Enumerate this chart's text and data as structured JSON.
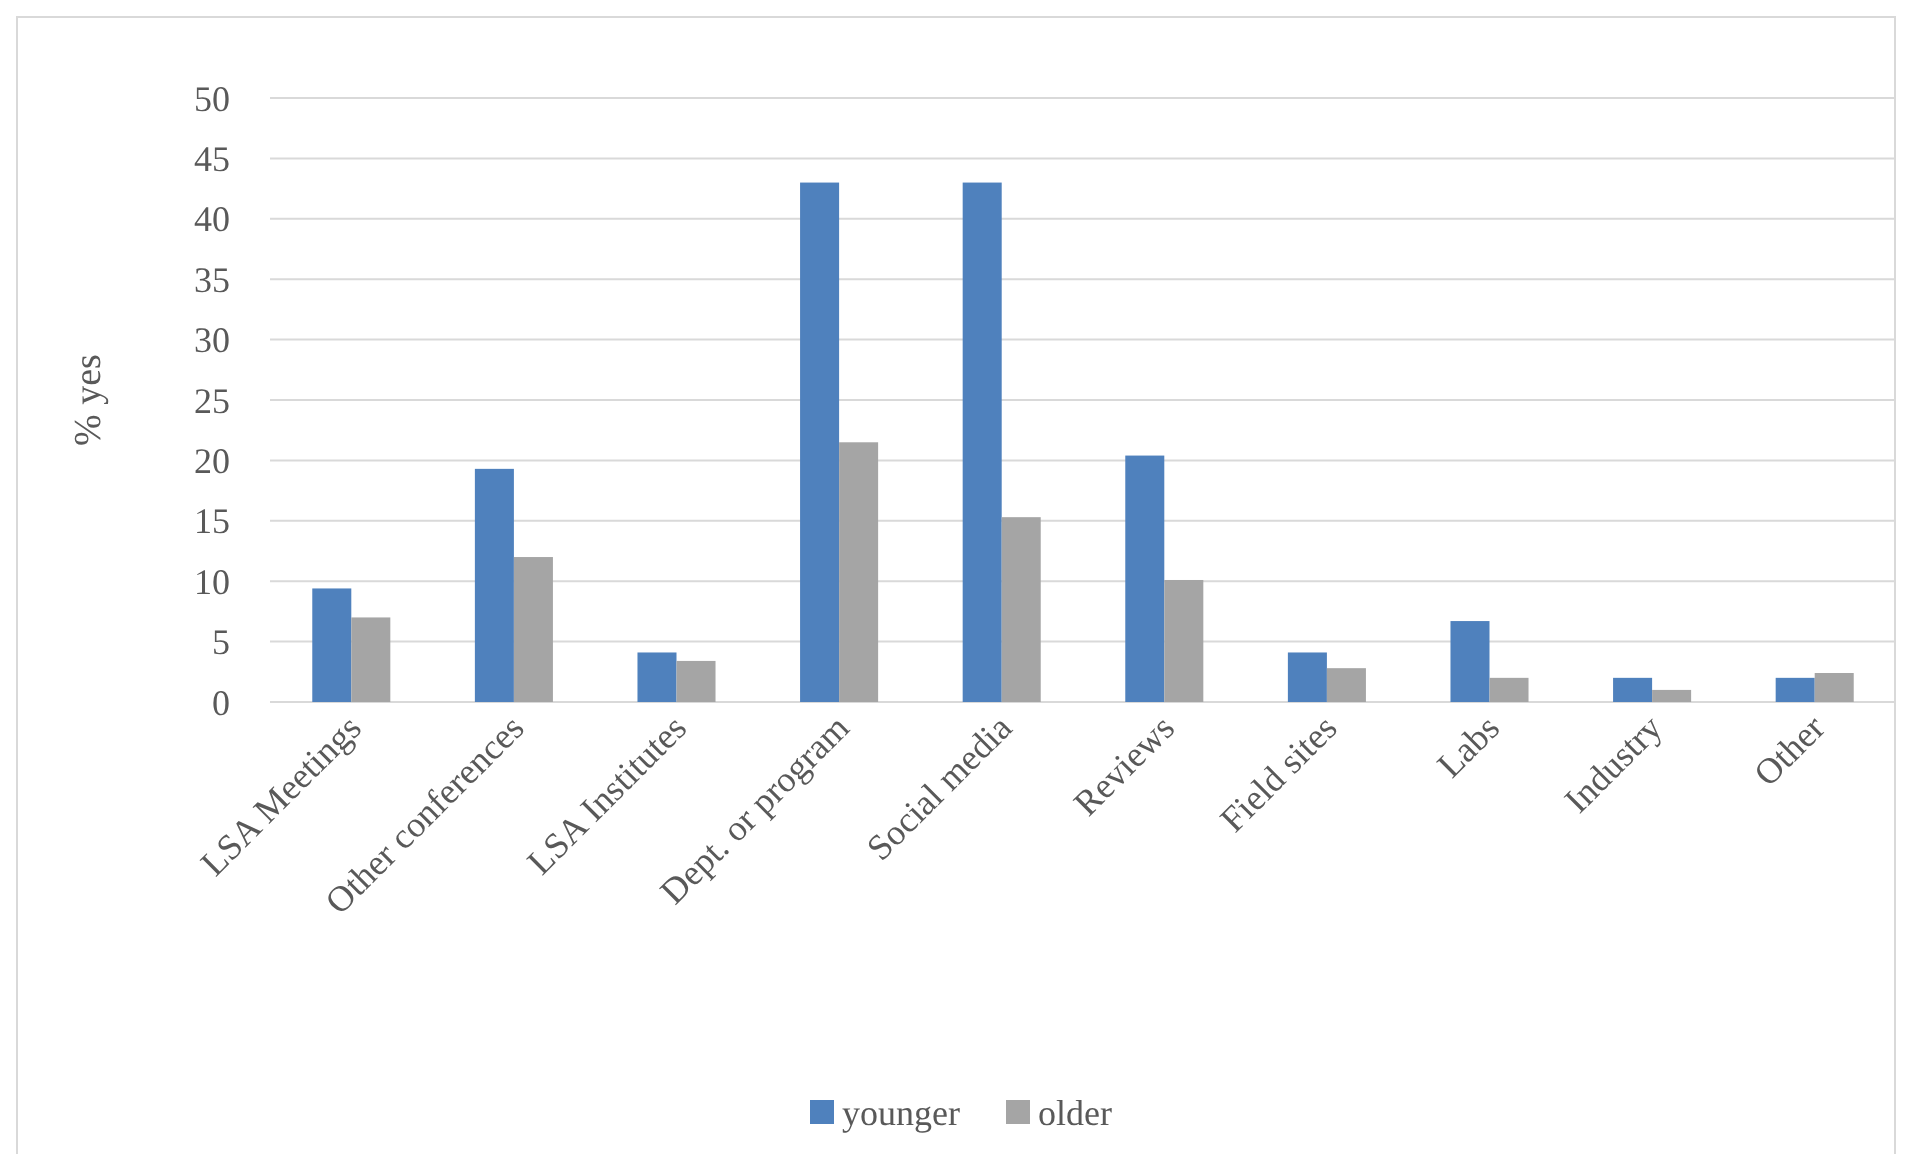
{
  "chart_data": {
    "type": "bar",
    "ylabel": "% yes",
    "categories": [
      "LSA Meetings",
      "Other conferences",
      "LSA Institutes",
      "Dept. or program",
      "Social media",
      "Reviews",
      "Field sites",
      "Labs",
      "Industry",
      "Other"
    ],
    "series": [
      {
        "name": "younger",
        "color": "#4f81bd",
        "values": [
          9.4,
          19.3,
          4.1,
          43.0,
          43.0,
          20.4,
          4.1,
          6.7,
          2.0,
          2.0
        ]
      },
      {
        "name": "older",
        "color": "#a5a5a5",
        "values": [
          7.0,
          12.0,
          3.4,
          21.5,
          15.3,
          10.1,
          2.8,
          2.0,
          1.0,
          2.4
        ]
      }
    ],
    "ylim": [
      0,
      50
    ],
    "yticks": [
      0,
      5,
      10,
      15,
      20,
      25,
      30,
      35,
      40,
      45,
      50
    ],
    "grid": "y",
    "legend": "bottom"
  }
}
